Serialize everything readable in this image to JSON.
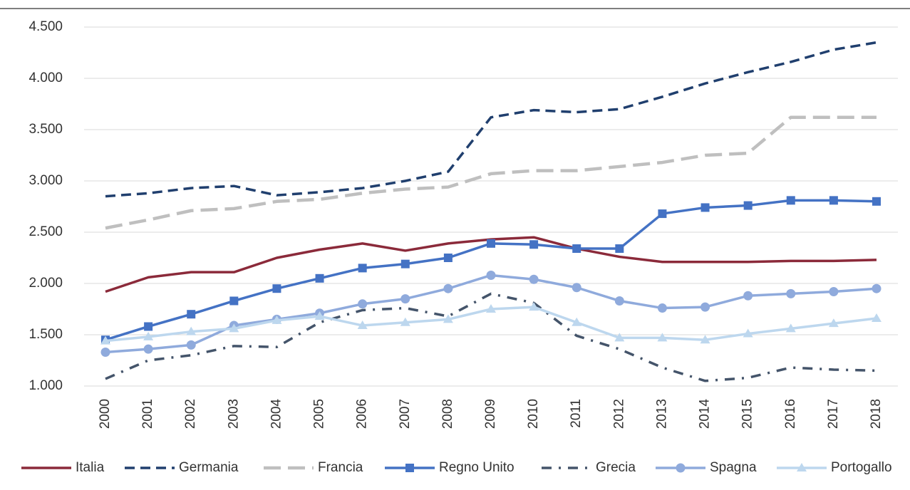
{
  "chart_data": {
    "type": "line",
    "categories": [
      "2000",
      "2001",
      "2002",
      "2003",
      "2004",
      "2005",
      "2006",
      "2007",
      "2008",
      "2009",
      "2010",
      "2011",
      "2012",
      "2013",
      "2014",
      "2015",
      "2016",
      "2017",
      "2018"
    ],
    "ylim": [
      1000,
      4500
    ],
    "yticks": [
      {
        "value": 1000,
        "label": "1.000"
      },
      {
        "value": 1500,
        "label": "1.500"
      },
      {
        "value": 2000,
        "label": "2.000"
      },
      {
        "value": 2500,
        "label": "2.500"
      },
      {
        "value": 3000,
        "label": "3.000"
      },
      {
        "value": 3500,
        "label": "3.500"
      },
      {
        "value": 4000,
        "label": "4.000"
      },
      {
        "value": 4500,
        "label": "4.500"
      }
    ],
    "grid": true,
    "legend": "bottom",
    "series": [
      {
        "name": "Italia",
        "color": "#8b2a3a",
        "dash": "solid",
        "marker": "none",
        "values": [
          1920,
          2060,
          2110,
          2110,
          2250,
          2330,
          2390,
          2320,
          2390,
          2430,
          2450,
          2340,
          2260,
          2210,
          2210,
          2210,
          2220,
          2220,
          2230
        ]
      },
      {
        "name": "Germania",
        "color": "#203f6e",
        "dash": "dashed",
        "marker": "none",
        "values": [
          2850,
          2880,
          2930,
          2950,
          2860,
          2890,
          2930,
          3000,
          3090,
          3620,
          3690,
          3670,
          3700,
          3820,
          3950,
          4060,
          4160,
          4280,
          4350
        ]
      },
      {
        "name": "Francia",
        "color": "#bfbfbf",
        "dash": "longdash",
        "marker": "none",
        "values": [
          2540,
          2620,
          2710,
          2730,
          2800,
          2820,
          2880,
          2920,
          2940,
          3070,
          3100,
          3100,
          3140,
          3180,
          3250,
          3270,
          3620,
          3620,
          3620
        ]
      },
      {
        "name": "Regno Unito",
        "color": "#4472c4",
        "dash": "solid",
        "marker": "square",
        "values": [
          1450,
          1580,
          1700,
          1830,
          1950,
          2050,
          2150,
          2190,
          2250,
          2390,
          2380,
          2340,
          2340,
          2680,
          2740,
          2760,
          2810,
          2810,
          2800
        ]
      },
      {
        "name": "Grecia",
        "color": "#44546a",
        "dash": "dashdot",
        "marker": "none",
        "values": [
          1070,
          1250,
          1300,
          1390,
          1380,
          1620,
          1740,
          1760,
          1680,
          1900,
          1810,
          1490,
          1360,
          1180,
          1050,
          1080,
          1180,
          1160,
          1150
        ]
      },
      {
        "name": "Spagna",
        "color": "#8faadc",
        "dash": "solid",
        "marker": "circle",
        "values": [
          1330,
          1360,
          1400,
          1590,
          1650,
          1710,
          1800,
          1850,
          1950,
          2080,
          2040,
          1960,
          1830,
          1760,
          1770,
          1880,
          1900,
          1920,
          1950
        ]
      },
      {
        "name": "Portogallo",
        "color": "#bdd7ee",
        "dash": "solid",
        "marker": "triangle",
        "values": [
          1440,
          1480,
          1530,
          1560,
          1640,
          1680,
          1590,
          1620,
          1650,
          1750,
          1770,
          1620,
          1470,
          1470,
          1450,
          1510,
          1560,
          1610,
          1660
        ]
      }
    ]
  }
}
